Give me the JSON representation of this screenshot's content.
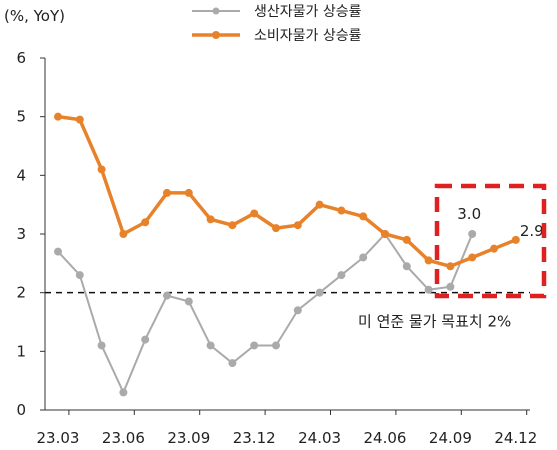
{
  "chart_data": {
    "type": "line",
    "unit_label": "(%, YoY)",
    "x_ticks": [
      "23.03",
      "23.06",
      "23.09",
      "23.12",
      "24.03",
      "24.06",
      "24.09",
      "24.12"
    ],
    "ylim": [
      0,
      6
    ],
    "y_ticks": [
      "0",
      "1",
      "2",
      "3",
      "4",
      "5",
      "6"
    ],
    "series": [
      {
        "name": "생산자물가 상승률",
        "color": "#aaaaaa",
        "values": [
          2.7,
          2.3,
          1.1,
          0.3,
          1.2,
          1.95,
          1.85,
          1.1,
          0.8,
          1.1,
          1.1,
          1.7,
          2.0,
          2.3,
          2.6,
          3.0,
          2.45,
          2.05,
          2.1,
          3.0
        ]
      },
      {
        "name": "소비자물가 상승률",
        "color": "#e8822a",
        "values": [
          5.0,
          4.95,
          4.1,
          3.0,
          3.2,
          3.7,
          3.7,
          3.25,
          3.15,
          3.35,
          3.1,
          3.15,
          3.5,
          3.4,
          3.3,
          3.0,
          2.9,
          2.55,
          2.45,
          2.6,
          2.75,
          2.9
        ]
      }
    ],
    "reference_line": {
      "value": 2.0,
      "label": "미 연준 물가 목표치 2%"
    },
    "data_labels": [
      {
        "text": "3.0",
        "series": 0,
        "index": 19
      },
      {
        "text": "2.9",
        "series": 1,
        "index": 21
      }
    ],
    "highlight_color": "#e02020",
    "legend_position": "top"
  }
}
